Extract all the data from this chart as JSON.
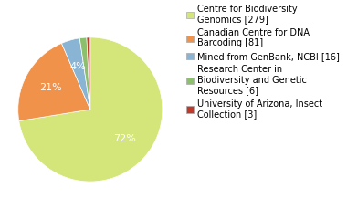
{
  "labels": [
    "Centre for Biodiversity\nGenomics [279]",
    "Canadian Centre for DNA\nBarcoding [81]",
    "Mined from GenBank, NCBI [16]",
    "Research Center in\nBiodiversity and Genetic\nResources [6]",
    "University of Arizona, Insect\nCollection [3]"
  ],
  "values": [
    279,
    81,
    16,
    6,
    3
  ],
  "colors": [
    "#d4e57a",
    "#f0924a",
    "#8ab4d4",
    "#8dc06c",
    "#c0392b"
  ],
  "pct_threshold": 3,
  "background_color": "#ffffff",
  "legend_fontsize": 7,
  "autopct_fontsize": 8,
  "startangle": 90,
  "counterclock": false
}
